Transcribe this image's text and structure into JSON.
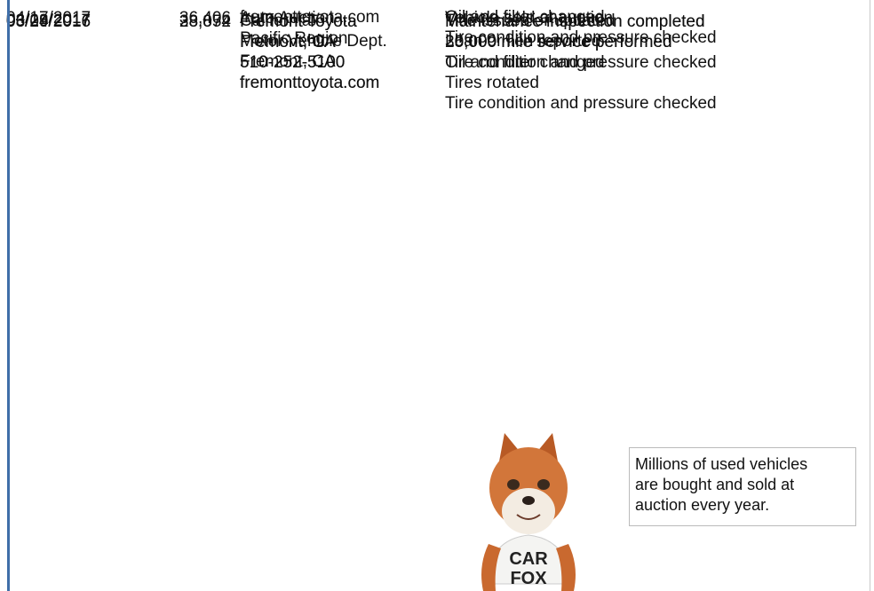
{
  "rows": [
    {
      "source": [
        "fremonttoyota.com"
      ],
      "comments": [
        "Oil and filter changed",
        "Tire condition and pressure checked"
      ]
    },
    {
      "date": "03/04/2016",
      "mileage": "28,052",
      "source": [
        "Fremont Toyota",
        "Fremont, CA",
        "510-252-5100",
        "fremonttoyota.com"
      ],
      "comments": [
        "Maintenance inspection completed",
        "25,000 mile service performed",
        "Tire condition and pressure checked"
      ]
    },
    {
      "date": "06/29/2016",
      "mileage": "33,874",
      "source": [
        "Fremont Toyota",
        "Fremont, CA",
        "510-252-5100",
        "fremonttoyota.com"
      ],
      "comments": [
        "Maintenance inspection completed",
        "30,000 mile service performed",
        "Oil and filter changed",
        "Tires rotated",
        "Tire condition and pressure checked"
      ]
    },
    {
      "date": "03/28/2017",
      "source": [
        "California",
        "Motor Vehicle Dept.",
        "Fremont, CA"
      ],
      "comments": [
        "Title issued or updated",
        "Loan or lien reported"
      ]
    },
    {
      "date": "04/17/2017",
      "mileage": "36,406",
      "source": [
        "Auto Auction",
        "Pacific Region"
      ],
      "comments": [
        "Vehicle sold at auction"
      ]
    }
  ],
  "callout": [
    "Millions of used vehicles",
    "are bought and sold at",
    "auction every year."
  ],
  "mascot_shirt": [
    "CAR",
    "FOX"
  ]
}
